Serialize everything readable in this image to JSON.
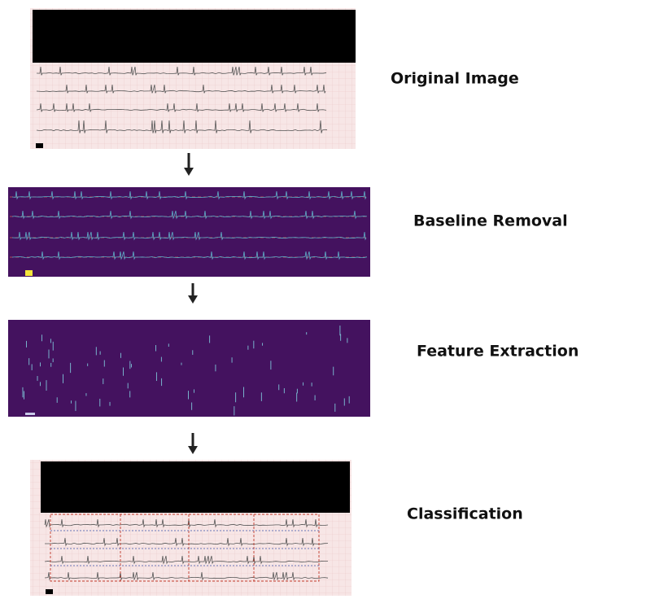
{
  "stages": [
    {
      "label": "Original Image"
    },
    {
      "label": "Baseline Removal"
    },
    {
      "label": "Feature Extraction"
    },
    {
      "label": "Classification"
    }
  ]
}
